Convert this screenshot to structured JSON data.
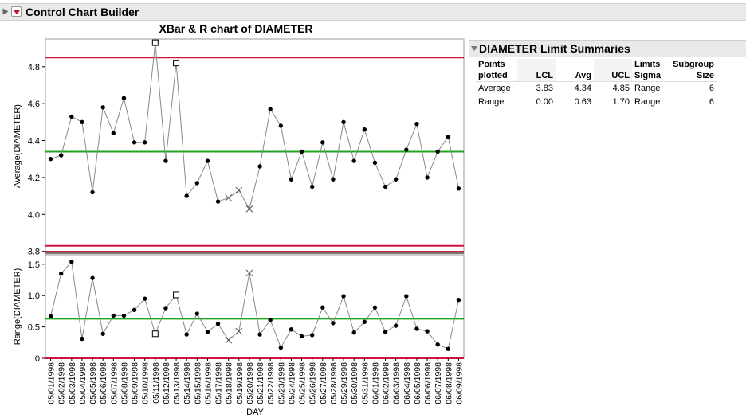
{
  "app": {
    "title": "Control Chart Builder"
  },
  "chart_data": {
    "type": "line",
    "title": "XBar & R chart of DIAMETER",
    "xlabel": "DAY",
    "categories": [
      "05/01/1998",
      "05/02/1998",
      "05/03/1998",
      "05/04/1998",
      "05/05/1998",
      "05/06/1998",
      "05/07/1998",
      "05/08/1998",
      "05/09/1998",
      "05/10/1998",
      "05/11/1998",
      "05/12/1998",
      "05/13/1998",
      "05/14/1998",
      "05/15/1998",
      "05/16/1998",
      "05/17/1998",
      "05/18/1998",
      "05/19/1998",
      "05/20/1998",
      "05/21/1998",
      "05/22/1998",
      "05/23/1998",
      "05/24/1998",
      "05/25/1998",
      "05/26/1998",
      "05/27/1998",
      "05/28/1998",
      "05/29/1998",
      "05/30/1998",
      "05/31/1998",
      "06/01/1998",
      "06/02/1998",
      "06/03/1998",
      "06/04/1998",
      "06/05/1998",
      "06/06/1998",
      "06/07/1998",
      "06/08/1998",
      "06/09/1998"
    ],
    "average": {
      "ylabel": "Average(DIAMETER)",
      "ylim": [
        3.79,
        4.95
      ],
      "yticks": [
        "3.8",
        "4.0",
        "4.2",
        "4.4",
        "4.6",
        "4.8"
      ],
      "values": [
        4.3,
        4.32,
        4.53,
        4.5,
        4.12,
        4.58,
        4.44,
        4.63,
        4.39,
        4.39,
        4.93,
        4.29,
        4.82,
        4.1,
        4.17,
        4.29,
        4.07,
        4.09,
        4.13,
        4.03,
        4.26,
        4.57,
        4.48,
        4.19,
        4.34,
        4.15,
        4.39,
        4.19,
        4.5,
        4.29,
        4.46,
        4.28,
        4.15,
        4.19,
        4.35,
        4.49,
        4.2,
        4.34,
        4.42,
        4.14
      ],
      "markers": [
        "dot",
        "dot",
        "dot",
        "dot",
        "dot",
        "dot",
        "dot",
        "dot",
        "dot",
        "dot",
        "square",
        "dot",
        "square",
        "dot",
        "dot",
        "dot",
        "dot",
        "x",
        "x",
        "x",
        "dot",
        "dot",
        "dot",
        "dot",
        "dot",
        "dot",
        "dot",
        "dot",
        "dot",
        "dot",
        "dot",
        "dot",
        "dot",
        "dot",
        "dot",
        "dot",
        "dot",
        "dot",
        "dot",
        "dot"
      ],
      "ucl": 4.85,
      "avg": 4.34,
      "lcl": 3.83
    },
    "range": {
      "ylabel": "Range(DIAMETER)",
      "ylim": [
        0,
        1.65
      ],
      "yticks": [
        "0",
        "0.5",
        "1.0",
        "1.5"
      ],
      "values": [
        0.67,
        1.35,
        1.54,
        0.31,
        1.28,
        0.39,
        0.68,
        0.68,
        0.77,
        0.95,
        0.39,
        0.8,
        1.01,
        0.38,
        0.71,
        0.42,
        0.55,
        0.29,
        0.43,
        1.36,
        0.38,
        0.61,
        0.17,
        0.46,
        0.35,
        0.37,
        0.81,
        0.56,
        0.99,
        0.41,
        0.58,
        0.81,
        0.42,
        0.52,
        0.99,
        0.47,
        0.43,
        0.22,
        0.15,
        0.93
      ],
      "markers": [
        "dot",
        "dot",
        "dot",
        "dot",
        "dot",
        "dot",
        "dot",
        "dot",
        "dot",
        "dot",
        "square",
        "dot",
        "square",
        "dot",
        "dot",
        "dot",
        "dot",
        "x",
        "x",
        "x",
        "dot",
        "dot",
        "dot",
        "dot",
        "dot",
        "dot",
        "dot",
        "dot",
        "dot",
        "dot",
        "dot",
        "dot",
        "dot",
        "dot",
        "dot",
        "dot",
        "dot",
        "dot",
        "dot",
        "dot"
      ],
      "ucl": 1.7,
      "avg": 0.63,
      "lcl": 0.0
    },
    "colors": {
      "limit": "#d2143a",
      "center": "#1ea61e",
      "line": "#888888",
      "point": "#000000"
    }
  },
  "summary": {
    "title": "DIAMETER Limit Summaries",
    "headers": {
      "points": "Points plotted",
      "lcl": "LCL",
      "avg": "Avg",
      "ucl": "UCL",
      "sigma": "Limits Sigma",
      "size": "Subgroup Size"
    },
    "rows": [
      {
        "name": "Average",
        "lcl": "3.83",
        "avg": "4.34",
        "ucl": "4.85",
        "sigma": "Range",
        "size": "6"
      },
      {
        "name": "Range",
        "lcl": "0.00",
        "avg": "0.63",
        "ucl": "1.70",
        "sigma": "Range",
        "size": "6"
      }
    ]
  }
}
